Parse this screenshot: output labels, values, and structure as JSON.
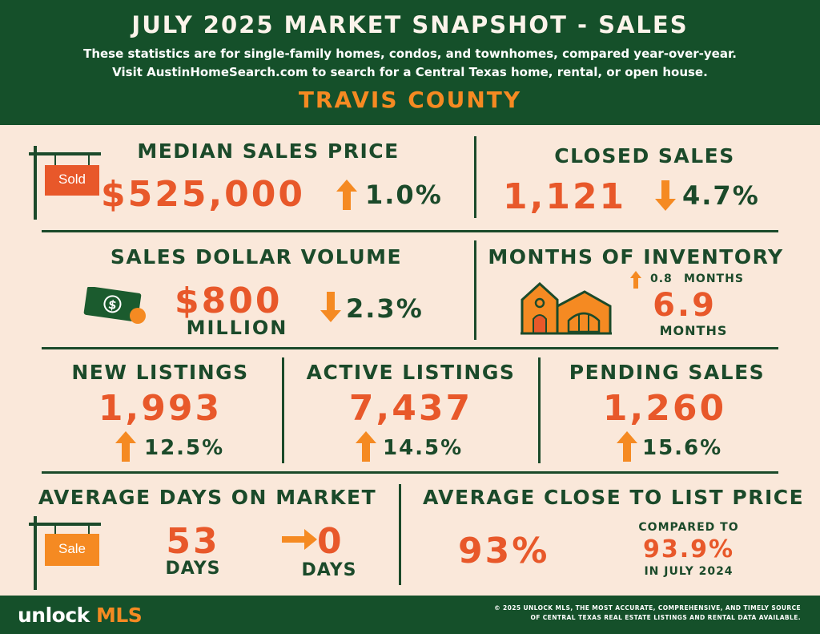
{
  "header": {
    "title": "JULY 2025 MARKET SNAPSHOT - SALES",
    "subtitle_line1": "These statistics are for single-family homes, condos, and townhomes, compared year-over-year.",
    "subtitle_line2": "Visit AustinHomeSearch.com to search for a Central Texas home, rental, or open house.",
    "county": "TRAVIS COUNTY"
  },
  "median_sales_price": {
    "label": "MEDIAN SALES PRICE",
    "value": "$525,000",
    "change": "1.0%",
    "direction": "up",
    "sign_text": "Sold",
    "icon": "sold-sign-icon"
  },
  "closed_sales": {
    "label": "CLOSED SALES",
    "value": "1,121",
    "change": "4.7%",
    "direction": "down"
  },
  "sales_dollar_volume": {
    "label": "SALES DOLLAR VOLUME",
    "value": "$800",
    "unit": "MILLION",
    "change": "2.3%",
    "direction": "down",
    "icon": "money-icon"
  },
  "months_of_inventory": {
    "label": "MONTHS OF INVENTORY",
    "change": "0.8",
    "change_unit": "MONTHS",
    "direction": "up",
    "value": "6.9",
    "unit": "MONTHS",
    "icon": "house-icon"
  },
  "new_listings": {
    "label": "NEW LISTINGS",
    "value": "1,993",
    "change": "12.5%",
    "direction": "up"
  },
  "active_listings": {
    "label": "ACTIVE LISTINGS",
    "value": "7,437",
    "change": "14.5%",
    "direction": "up"
  },
  "pending_sales": {
    "label": "PENDING SALES",
    "value": "1,260",
    "change": "15.6%",
    "direction": "up"
  },
  "average_days_on_market": {
    "label": "AVERAGE DAYS ON MARKET",
    "value": "53",
    "unit": "DAYS",
    "change": "0",
    "change_unit": "DAYS",
    "direction": "flat",
    "sign_text": "Sale",
    "icon": "sale-sign-icon"
  },
  "average_close_to_list": {
    "label": "AVERAGE CLOSE TO LIST PRICE",
    "value": "93%",
    "compared_label": "COMPARED TO",
    "compared_value": "93.9%",
    "compared_period": "IN JULY 2024"
  },
  "footer": {
    "brand_part1": "unlock ",
    "brand_part2": "MLS",
    "copyright_line1": "© 2025 UNLOCK MLS, THE MOST ACCURATE, COMPREHENSIVE, AND TIMELY SOURCE",
    "copyright_line2": "OF CENTRAL TEXAS REAL ESTATE LISTINGS AND RENTAL DATA AVAILABLE."
  },
  "colors": {
    "header_green": "#15502a",
    "background_cream": "#fae8da",
    "value_orange": "#e8582a",
    "accent_orange": "#f58a22",
    "text_green": "#1b4a2a"
  }
}
